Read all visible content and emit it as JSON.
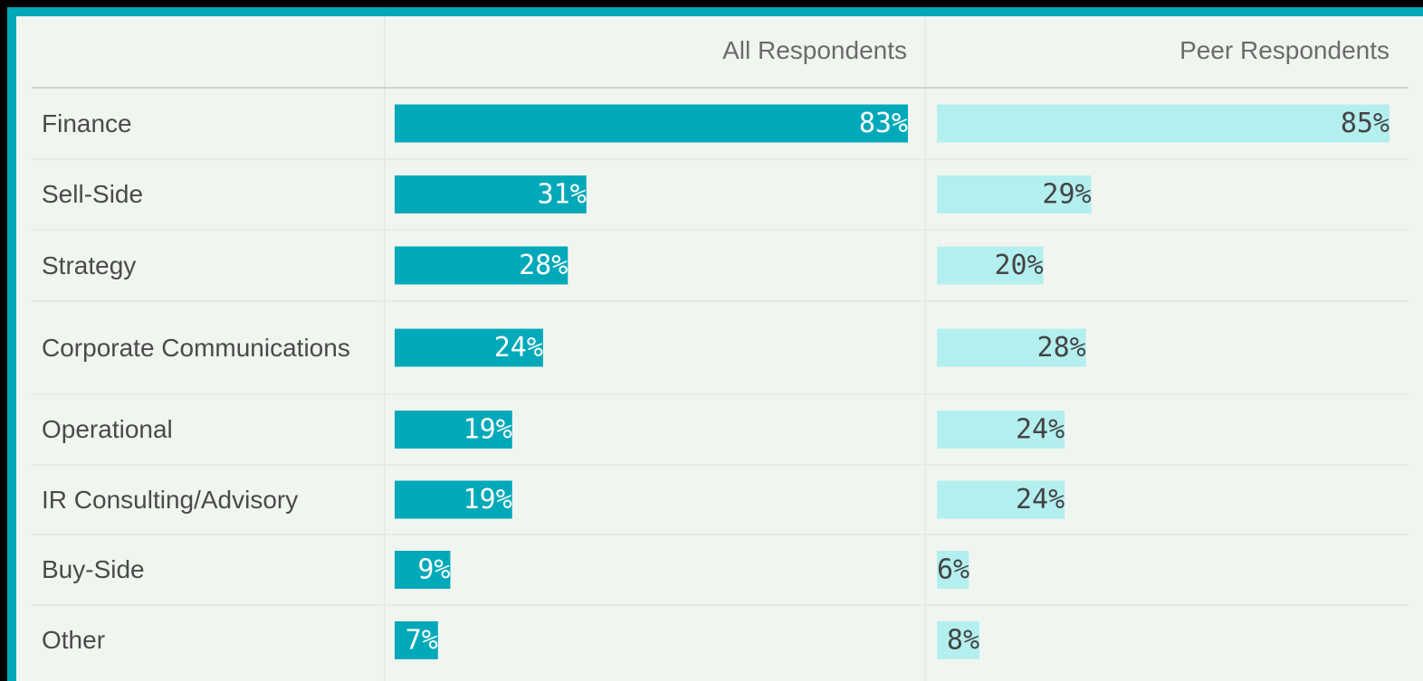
{
  "chart_data": {
    "type": "bar",
    "categories": [
      "Finance",
      "Sell-Side",
      "Strategy",
      "Corporate Communications",
      "Operational",
      "IR Consulting/Advisory",
      "Buy-Side",
      "Other"
    ],
    "series": [
      {
        "name": "All Respondents",
        "color": "#00a9b9",
        "values": [
          83,
          31,
          28,
          24,
          19,
          19,
          9,
          7
        ],
        "value_labels": [
          "83%",
          "31%",
          "28%",
          "24%",
          "19%",
          "19%",
          "9%",
          "7%"
        ]
      },
      {
        "name": "Peer Respondents",
        "color": "#b4efef",
        "values": [
          85,
          29,
          20,
          28,
          24,
          24,
          6,
          8
        ],
        "value_labels": [
          "85%",
          "29%",
          "20%",
          "28%",
          "24%",
          "24%",
          "6%",
          "8%"
        ]
      }
    ]
  }
}
